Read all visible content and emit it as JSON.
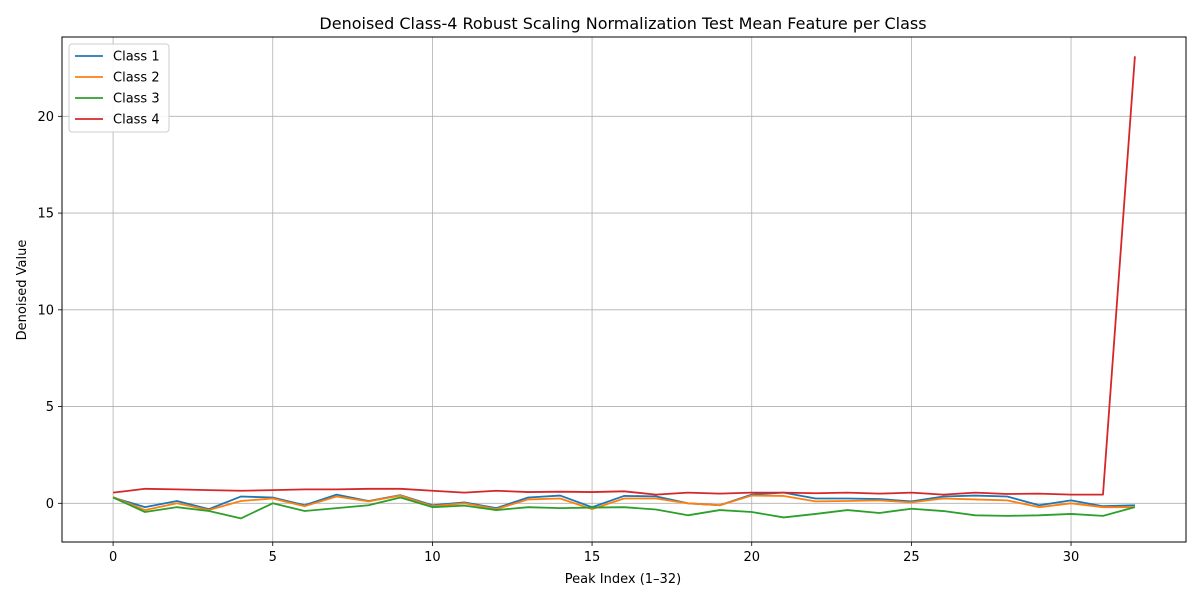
{
  "chart_data": {
    "type": "line",
    "title": "Denoised Class-4 Robust Scaling Normalization Test Mean Feature per Class",
    "xlabel": "Peak Index (1–32)",
    "ylabel": "Denoised Value",
    "xlim": [
      -1.6,
      33.6
    ],
    "ylim": [
      -2.0,
      24.1
    ],
    "xticks": [
      0,
      5,
      10,
      15,
      20,
      25,
      30
    ],
    "yticks": [
      0,
      5,
      10,
      15,
      20
    ],
    "grid": true,
    "legend_position": "top-left",
    "x": [
      0,
      1,
      2,
      3,
      4,
      5,
      6,
      7,
      8,
      9,
      10,
      11,
      12,
      13,
      14,
      15,
      16,
      17,
      18,
      19,
      20,
      21,
      22,
      23,
      24,
      25,
      26,
      27,
      28,
      29,
      30,
      31,
      32
    ],
    "series": [
      {
        "name": "Class 1",
        "color": "#1f77b4",
        "values": [
          0.3,
          -0.2,
          0.12,
          -0.3,
          0.35,
          0.3,
          -0.1,
          0.45,
          0.12,
          0.42,
          -0.1,
          0.05,
          -0.25,
          0.3,
          0.4,
          -0.2,
          0.38,
          0.36,
          0.0,
          -0.1,
          0.45,
          0.55,
          0.25,
          0.25,
          0.22,
          0.1,
          0.35,
          0.4,
          0.35,
          -0.1,
          0.15,
          -0.15,
          -0.1
        ]
      },
      {
        "name": "Class 2",
        "color": "#ff7f0e",
        "values": [
          0.32,
          -0.35,
          0.0,
          -0.35,
          0.12,
          0.25,
          -0.15,
          0.35,
          0.1,
          0.4,
          -0.15,
          0.0,
          -0.3,
          0.2,
          0.25,
          -0.3,
          0.25,
          0.25,
          0.0,
          -0.1,
          0.4,
          0.38,
          0.1,
          0.12,
          0.15,
          0.05,
          0.25,
          0.2,
          0.15,
          -0.2,
          0.0,
          -0.2,
          -0.2
        ]
      },
      {
        "name": "Class 3",
        "color": "#2ca02c",
        "values": [
          0.3,
          -0.45,
          -0.2,
          -0.4,
          -0.78,
          0.0,
          -0.4,
          -0.25,
          -0.1,
          0.3,
          -0.2,
          -0.12,
          -0.35,
          -0.2,
          -0.25,
          -0.22,
          -0.2,
          -0.32,
          -0.62,
          -0.35,
          -0.45,
          -0.73,
          -0.55,
          -0.35,
          -0.5,
          -0.28,
          -0.4,
          -0.62,
          -0.65,
          -0.62,
          -0.55,
          -0.65,
          -0.2
        ]
      },
      {
        "name": "Class 4",
        "color": "#d62728",
        "values": [
          0.55,
          0.75,
          0.72,
          0.68,
          0.65,
          0.68,
          0.72,
          0.72,
          0.75,
          0.75,
          0.65,
          0.55,
          0.65,
          0.58,
          0.6,
          0.58,
          0.62,
          0.45,
          0.55,
          0.5,
          0.55,
          0.55,
          0.52,
          0.55,
          0.5,
          0.55,
          0.45,
          0.55,
          0.48,
          0.5,
          0.45,
          0.45,
          23.1
        ]
      }
    ]
  }
}
